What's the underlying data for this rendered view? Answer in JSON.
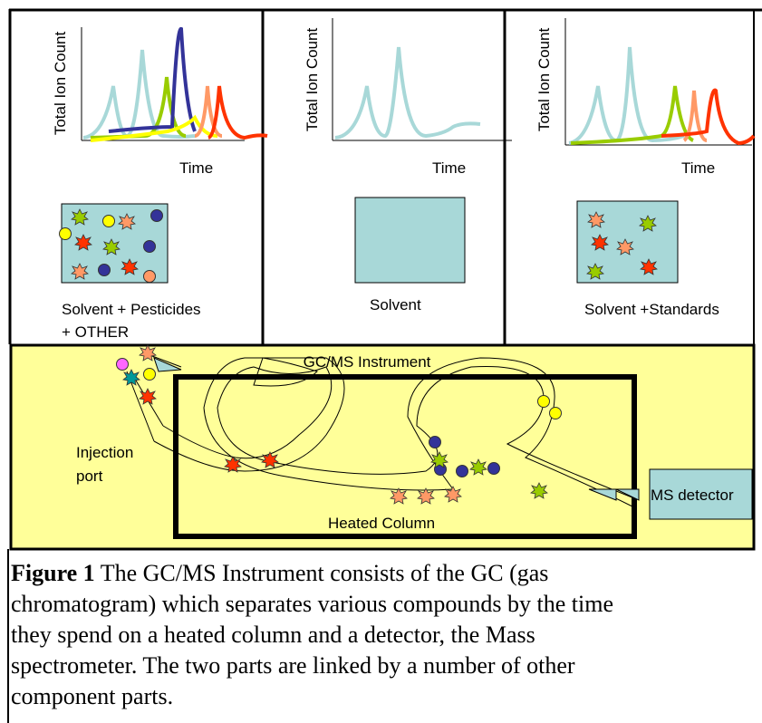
{
  "panels": [
    {
      "y_axis_label": "Total Ion Count",
      "x_axis_label": "Time",
      "caption": [
        "Solvent + Pesticides",
        "+ OTHER"
      ]
    },
    {
      "y_axis_label": "Total Ion Count",
      "x_axis_label": "Time",
      "caption": [
        "Solvent"
      ]
    },
    {
      "y_axis_label": "Total Ion Count",
      "x_axis_label": "Time",
      "caption": [
        "Solvent +Standards"
      ]
    }
  ],
  "instrument": {
    "title": "GC/MS Instrument",
    "injection_port": [
      "Injection",
      "port"
    ],
    "column": "Heated Column",
    "detector": "MS detector"
  },
  "figure_caption": {
    "label": "Figure 1",
    "lines": [
      "The GC/MS Instrument consists of the GC (gas",
      "chromatogram) which separates various compounds by the time",
      "they spend on a heated column and a detector, the Mass",
      "spectrometer. The two parts are linked by a number of other",
      "component parts."
    ]
  }
}
